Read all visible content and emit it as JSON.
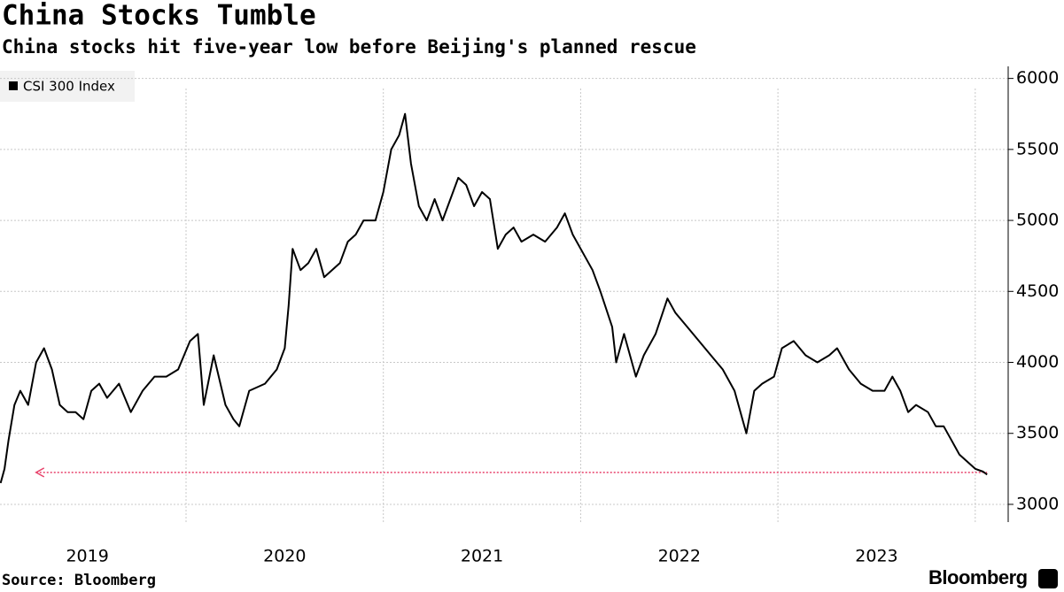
{
  "chart_data": {
    "type": "line",
    "title": "China Stocks Tumble",
    "subtitle": "China stocks hit five-year low before Beijing's planned rescue",
    "source": "Source: Bloomberg",
    "brand": "Bloomberg",
    "x": [
      2019.06,
      2019.08,
      2019.1,
      2019.13,
      2019.16,
      2019.2,
      2019.24,
      2019.28,
      2019.32,
      2019.36,
      2019.4,
      2019.44,
      2019.48,
      2019.52,
      2019.56,
      2019.6,
      2019.66,
      2019.72,
      2019.78,
      2019.84,
      2019.9,
      2019.96,
      2020.02,
      2020.06,
      2020.09,
      2020.14,
      2020.2,
      2020.24,
      2020.27,
      2020.32,
      2020.4,
      2020.46,
      2020.5,
      2020.52,
      2020.54,
      2020.58,
      2020.62,
      2020.66,
      2020.7,
      2020.74,
      2020.78,
      2020.82,
      2020.86,
      2020.9,
      2020.96,
      2021.0,
      2021.04,
      2021.08,
      2021.11,
      2021.14,
      2021.18,
      2021.22,
      2021.26,
      2021.3,
      2021.34,
      2021.38,
      2021.42,
      2021.46,
      2021.5,
      2021.54,
      2021.58,
      2021.62,
      2021.66,
      2021.7,
      2021.76,
      2021.82,
      2021.88,
      2021.92,
      2021.96,
      2022.02,
      2022.06,
      2022.1,
      2022.16,
      2022.18,
      2022.22,
      2022.28,
      2022.32,
      2022.38,
      2022.44,
      2022.48,
      2022.54,
      2022.6,
      2022.66,
      2022.72,
      2022.78,
      2022.82,
      2022.84,
      2022.88,
      2022.92,
      2022.98,
      2023.02,
      2023.08,
      2023.14,
      2023.2,
      2023.26,
      2023.3,
      2023.36,
      2023.42,
      2023.48,
      2023.54,
      2023.58,
      2023.62,
      2023.66,
      2023.7,
      2023.76,
      2023.8,
      2023.84,
      2023.88,
      2023.92,
      2023.96,
      2024.0,
      2024.04,
      2024.06
    ],
    "series": [
      {
        "name": "CSI 300 Index",
        "color": "#000000",
        "values": [
          3150,
          3250,
          3450,
          3700,
          3800,
          3700,
          4000,
          4100,
          3950,
          3700,
          3650,
          3650,
          3600,
          3800,
          3850,
          3750,
          3850,
          3650,
          3800,
          3900,
          3900,
          3950,
          4150,
          4200,
          3700,
          4050,
          3700,
          3600,
          3550,
          3800,
          3850,
          3950,
          4100,
          4400,
          4800,
          4650,
          4700,
          4800,
          4600,
          4650,
          4700,
          4850,
          4900,
          5000,
          5000,
          5200,
          5500,
          5600,
          5750,
          5400,
          5100,
          5000,
          5150,
          5000,
          5150,
          5300,
          5250,
          5100,
          5200,
          5150,
          4800,
          4900,
          4950,
          4850,
          4900,
          4850,
          4950,
          5050,
          4900,
          4750,
          4650,
          4500,
          4250,
          4000,
          4200,
          3900,
          4050,
          4200,
          4450,
          4350,
          4250,
          4150,
          4050,
          3950,
          3800,
          3600,
          3500,
          3800,
          3850,
          3900,
          4100,
          4150,
          4050,
          4000,
          4050,
          4100,
          3950,
          3850,
          3800,
          3800,
          3900,
          3800,
          3650,
          3700,
          3650,
          3550,
          3550,
          3450,
          3350,
          3300,
          3250,
          3230,
          3210
        ]
      }
    ],
    "annotation_line": {
      "value": 3225,
      "x": [
        2019.24,
        2024.06
      ],
      "color": "#e8416a"
    },
    "xlim": [
      2019.057,
      2024.167
    ],
    "x_gridlines": [
      2020,
      2021,
      2022,
      2023,
      2024
    ],
    "xticks": [
      {
        "value": 2019.5,
        "label": "2019"
      },
      {
        "value": 2020.5,
        "label": "2020"
      },
      {
        "value": 2021.5,
        "label": "2021"
      },
      {
        "value": 2022.5,
        "label": "2022"
      },
      {
        "value": 2023.5,
        "label": "2023"
      }
    ],
    "ylim": [
      2875,
      6085
    ],
    "yticks": [
      3000,
      3500,
      4000,
      4500,
      5000,
      5500,
      6000
    ],
    "grid": true
  }
}
